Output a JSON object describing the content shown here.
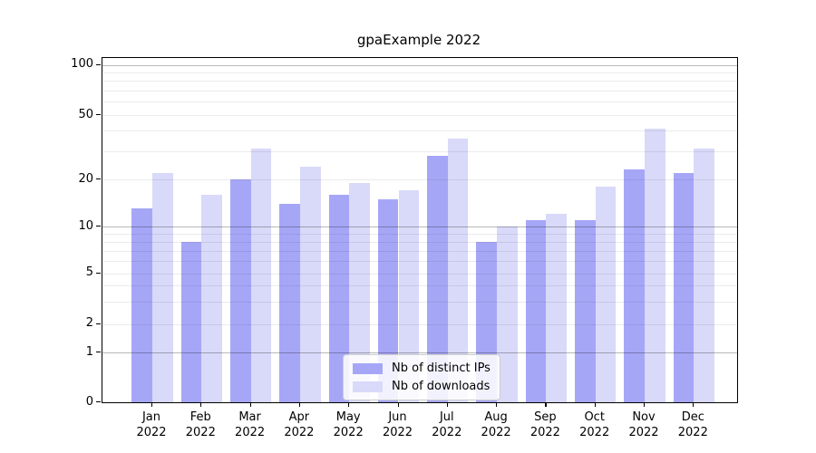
{
  "chart_data": {
    "type": "bar",
    "title": "gpaExample 2022",
    "categories": [
      {
        "month": "Jan",
        "year": "2022"
      },
      {
        "month": "Feb",
        "year": "2022"
      },
      {
        "month": "Mar",
        "year": "2022"
      },
      {
        "month": "Apr",
        "year": "2022"
      },
      {
        "month": "May",
        "year": "2022"
      },
      {
        "month": "Jun",
        "year": "2022"
      },
      {
        "month": "Jul",
        "year": "2022"
      },
      {
        "month": "Aug",
        "year": "2022"
      },
      {
        "month": "Sep",
        "year": "2022"
      },
      {
        "month": "Oct",
        "year": "2022"
      },
      {
        "month": "Nov",
        "year": "2022"
      },
      {
        "month": "Dec",
        "year": "2022"
      }
    ],
    "series": [
      {
        "name": "Nb of distinct IPs",
        "color": "#a6a6f7",
        "values": [
          13,
          8,
          20,
          14,
          16,
          15,
          28,
          8,
          11,
          11,
          23,
          22
        ]
      },
      {
        "name": "Nb of downloads",
        "color": "#d9d9f9",
        "values": [
          22,
          16,
          31,
          24,
          19,
          17,
          36,
          10,
          12,
          18,
          41,
          31
        ]
      }
    ],
    "y_axis": {
      "scale": "symlog",
      "tick_values": [
        100,
        50,
        20,
        10,
        5,
        2,
        1,
        0
      ],
      "range": [
        0,
        110
      ]
    },
    "grid": {
      "enabled": true,
      "major_values": [
        1,
        10,
        100
      ],
      "minor_values": [
        2,
        3,
        4,
        5,
        6,
        7,
        8,
        9,
        20,
        30,
        40,
        50,
        60,
        70,
        80,
        90
      ]
    },
    "legend": {
      "position": "lower-center"
    }
  }
}
